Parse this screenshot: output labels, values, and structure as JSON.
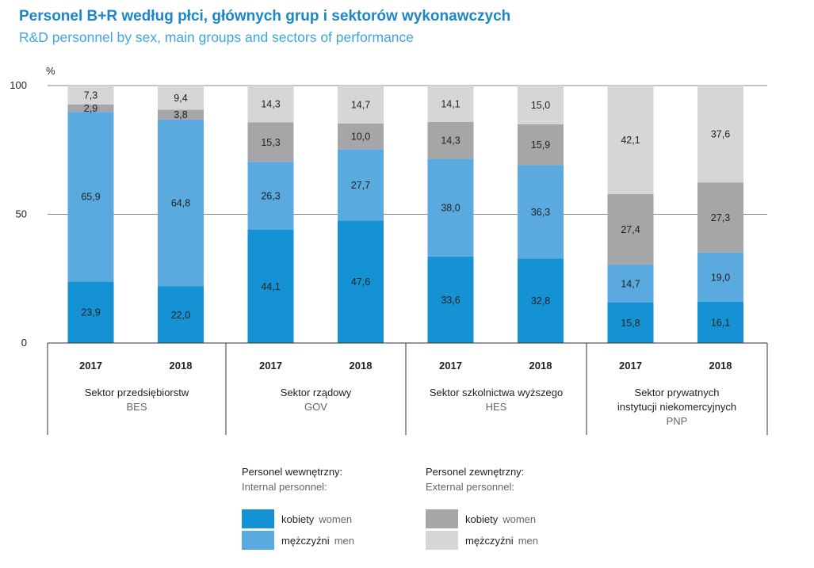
{
  "header": {
    "title_pl": "Personel B+R według płci, głównych grup i sektorów wykonawczych",
    "title_en": "R&D personnel by sex, main groups and sectors of performance"
  },
  "chart_data": {
    "type": "bar",
    "stacked": true,
    "ylabel": "%",
    "ylim": [
      0,
      100
    ],
    "yticks": [
      "0",
      "50",
      "100"
    ],
    "years": [
      "2017",
      "2018",
      "2017",
      "2018",
      "2017",
      "2018",
      "2017",
      "2018"
    ],
    "groups": [
      {
        "name": "Sektor przedsiębiorstw",
        "name2": "",
        "code": "BES"
      },
      {
        "name": "Sektor rządowy",
        "name2": "",
        "code": "GOV"
      },
      {
        "name": "Sektor szkolnictwa wyższego",
        "name2": "",
        "code": "HES"
      },
      {
        "name": "Sektor prywatnych",
        "name2": "instytucji niekomercyjnych",
        "code": "PNP"
      }
    ],
    "series": [
      {
        "key": "int_women",
        "color": "#1592d4",
        "values": [
          23.9,
          22.0,
          44.1,
          47.6,
          33.6,
          32.8,
          15.8,
          16.1
        ],
        "labels": [
          "23,9",
          "22,0",
          "44,1",
          "47,6",
          "33,6",
          "32,8",
          "15,8",
          "16,1"
        ]
      },
      {
        "key": "int_men",
        "color": "#5aaae0",
        "values": [
          65.9,
          64.8,
          26.3,
          27.7,
          38.0,
          36.3,
          14.7,
          19.0
        ],
        "labels": [
          "65,9",
          "64,8",
          "26,3",
          "27,7",
          "38,0",
          "36,3",
          "14,7",
          "19,0"
        ]
      },
      {
        "key": "ext_women",
        "color": "#a6a6a8",
        "values": [
          2.9,
          3.8,
          15.3,
          10.0,
          14.3,
          15.9,
          27.4,
          27.3
        ],
        "labels": [
          "2,9",
          "3,8",
          "15,3",
          "10,0",
          "14,3",
          "15,9",
          "27,4",
          "27,3"
        ]
      },
      {
        "key": "ext_men",
        "color": "#d6d6d8",
        "values": [
          7.3,
          9.4,
          14.3,
          14.7,
          14.1,
          15.0,
          42.1,
          37.6
        ],
        "labels": [
          "7,3",
          "9,4",
          "14,3",
          "14,7",
          "14,1",
          "15,0",
          "42,1",
          "37,6"
        ]
      }
    ],
    "grid": true
  },
  "legend": {
    "internal": {
      "title_pl": "Personel wewnętrzny:",
      "title_en": "Internal personnel:"
    },
    "external": {
      "title_pl": "Personel zewnętrzny:",
      "title_en": "External personnel:"
    },
    "women_pl": "kobiety",
    "women_en": "women",
    "men_pl": "mężczyźni",
    "men_en": "men",
    "colors": {
      "int_women": "#1592d4",
      "int_men": "#5aaae0",
      "ext_women": "#a6a6a8",
      "ext_men": "#d6d6d8"
    }
  }
}
